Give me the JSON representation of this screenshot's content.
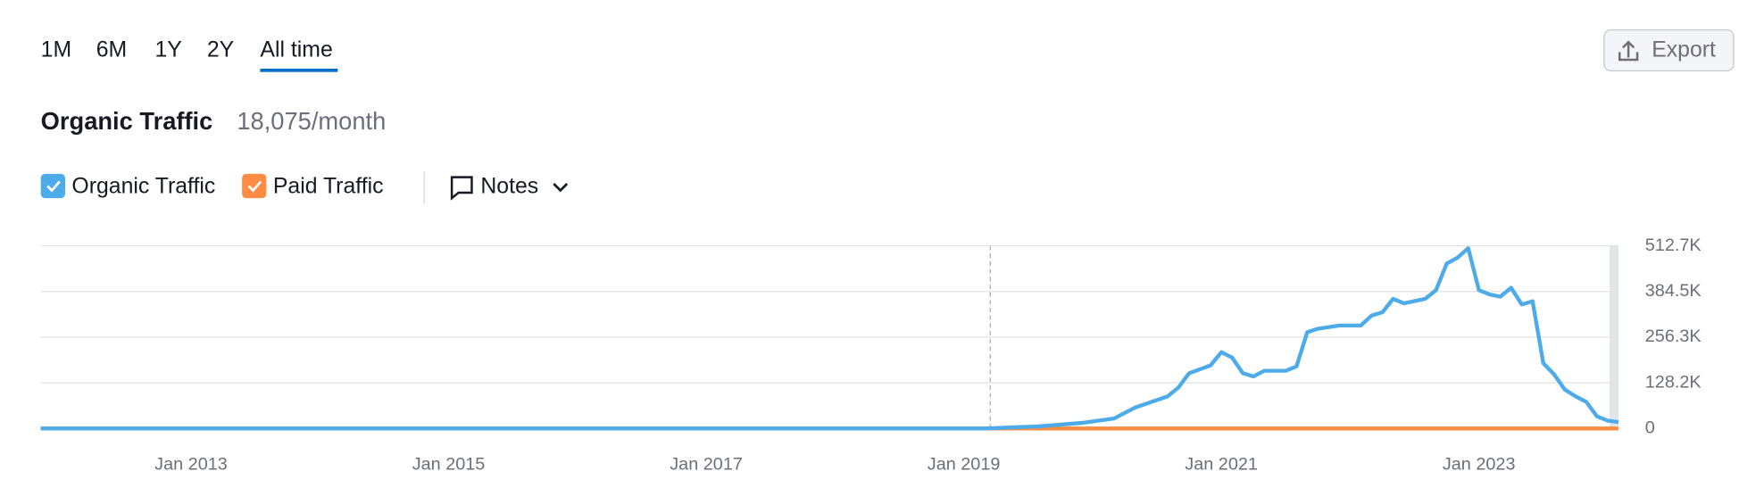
{
  "tabs": [
    "1M",
    "6M",
    "1Y",
    "2Y",
    "All time"
  ],
  "export": "Export",
  "chart_data": {
    "type": "line",
    "title": "Organic Traffic",
    "subtitle": "18,075/month",
    "notes_label": "Notes",
    "x": [
      "2011-11",
      "2019-03",
      "2019-08",
      "2019-12",
      "2020-03",
      "2020-05",
      "2020-08",
      "2020-09",
      "2020-10",
      "2020-12",
      "2021-01",
      "2021-02",
      "2021-03",
      "2021-04",
      "2021-05",
      "2021-07",
      "2021-08",
      "2021-09",
      "2021-10",
      "2021-12",
      "2022-02",
      "2022-03",
      "2022-04",
      "2022-05",
      "2022-06",
      "2022-08",
      "2022-09",
      "2022-10",
      "2022-11",
      "2022-12",
      "2023-01",
      "2023-02",
      "2023-03",
      "2023-04",
      "2023-05",
      "2023-06",
      "2023-07",
      "2023-08",
      "2023-09",
      "2023-10",
      "2023-11",
      "2023-12",
      "2024-01",
      "2024-02"
    ],
    "xlim": [
      "2011-11",
      "2024-02"
    ],
    "xticks": [
      {
        "value": "2013-01",
        "label": "Jan 2013"
      },
      {
        "value": "2015-01",
        "label": "Jan 2015"
      },
      {
        "value": "2017-01",
        "label": "Jan 2017"
      },
      {
        "value": "2019-01",
        "label": "Jan 2019"
      },
      {
        "value": "2021-01",
        "label": "Jan 2021"
      },
      {
        "value": "2023-01",
        "label": "Jan 2023"
      }
    ],
    "series": [
      {
        "name": "Paid Traffic",
        "color": "#ff8c42",
        "values": [
          0,
          0,
          0,
          0,
          0,
          0,
          0,
          0,
          0,
          0,
          0,
          0,
          0,
          0,
          0,
          0,
          0,
          0,
          0,
          0,
          0,
          0,
          0,
          0,
          0,
          0,
          0,
          0,
          0,
          0,
          0,
          0,
          0,
          0,
          0,
          0,
          0,
          0,
          0,
          0,
          0,
          0,
          0,
          0
        ]
      },
      {
        "name": "Organic Traffic",
        "color": "#4dabea",
        "values": [
          0,
          0,
          6000,
          15500,
          28000,
          59000,
          90000,
          115000,
          155000,
          177000,
          214000,
          199000,
          155000,
          146000,
          162000,
          162000,
          174000,
          270000,
          280000,
          289000,
          289000,
          317000,
          326000,
          364000,
          351000,
          364000,
          388000,
          463000,
          479000,
          506000,
          388000,
          376000,
          370000,
          395000,
          348000,
          357000,
          183000,
          152000,
          109000,
          90000,
          75000,
          34000,
          22000,
          18075
        ]
      }
    ],
    "ylim": [
      0,
      512700
    ],
    "yticks": [
      0,
      {
        "value": 128200,
        "label": "128.2K"
      },
      {
        "value": 256300,
        "label": "256.3K"
      },
      {
        "value": 384500,
        "label": "384.5K"
      },
      {
        "value": 512700,
        "label": "512.7K"
      }
    ],
    "grid": true
  }
}
